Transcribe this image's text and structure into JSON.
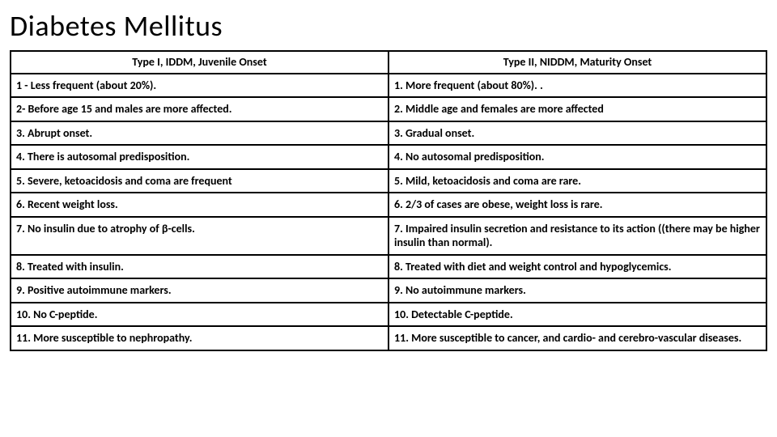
{
  "title": "Diabetes Mellitus",
  "table": {
    "headers": {
      "left": "Type I, IDDM, Juvenile Onset",
      "right": "Type II, NIDDM, Maturity Onset"
    },
    "rows": [
      {
        "left": "1 - Less frequent (about 20%).",
        "right": "1. More frequent (about 80%). ."
      },
      {
        "left": "2- Before age 15 and males are more affected.",
        "right": " 2. Middle age and females are more affected"
      },
      {
        "left": "3. Abrupt onset.",
        "right": "3. Gradual onset."
      },
      {
        "left": "4. There is autosomal predisposition.",
        "right": "4. No autosomal predisposition."
      },
      {
        "left": " 5. Severe, ketoacidosis and coma are frequent",
        "right": "5. Mild, ketoacidosis and coma are rare."
      },
      {
        "left": "6. Recent weight loss.",
        "right": "6. 2/3 of cases are obese, weight loss is rare."
      },
      {
        "left": "7. No insulin due to atrophy of β-cells.",
        "right": "7. Impaired insulin secretion and resistance to its action ((there may be higher insulin than normal)."
      },
      {
        "left": "8. Treated with insulin.",
        "right": "8. Treated with diet and weight control and hypoglycemics."
      },
      {
        "left": "9. Positive autoimmune markers.",
        "right": "9. No  autoimmune markers."
      },
      {
        "left": "10. No C-peptide.",
        "right": "10. Detectable C-peptide."
      },
      {
        "left": " 11. More susceptible to nephropathy.",
        "right": " 11. More susceptible to cancer, and cardio- and cerebro-vascular diseases."
      }
    ]
  }
}
